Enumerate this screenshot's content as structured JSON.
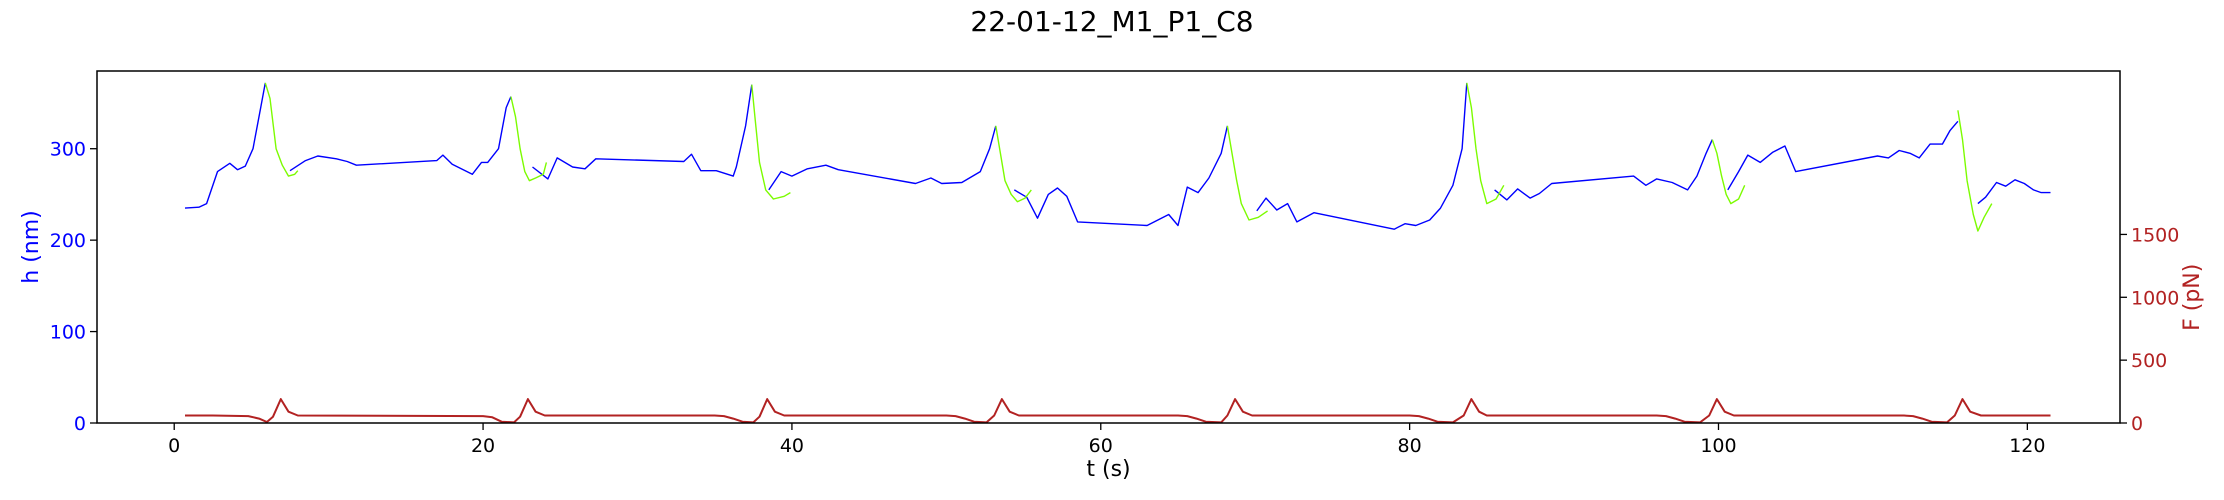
{
  "chart_data": {
    "type": "line",
    "title": "22-01-12_M1_P1_C8",
    "xlabel": "t (s)",
    "ylabel": "h (nm)",
    "y2label": "F (pN)",
    "xlim": [
      -5,
      126
    ],
    "ylim": [
      0,
      385
    ],
    "y2lim": [
      0,
      2800
    ],
    "x_ticks": [
      0,
      20,
      40,
      60,
      80,
      100,
      120
    ],
    "y_ticks": [
      0,
      100,
      200,
      300
    ],
    "y2_ticks": [
      0,
      500,
      1000,
      1500
    ],
    "grid": false,
    "colors": {
      "h_approach": "#0000ff",
      "h_retract": "#7cfc00",
      "force": "#b22222",
      "left_axis": "#0000ff",
      "right_axis": "#b22222"
    },
    "series": [
      {
        "axis": "left",
        "color_key": "h_approach",
        "segments": [
          [
            [
              0.7,
              235
            ],
            [
              1.6,
              236
            ],
            [
              2.1,
              240
            ],
            [
              2.8,
              275
            ],
            [
              3.6,
              284
            ],
            [
              4.1,
              277
            ],
            [
              4.6,
              281
            ],
            [
              5.1,
              300
            ],
            [
              5.6,
              345
            ],
            [
              5.9,
              372
            ]
          ],
          [
            [
              7.5,
              276
            ],
            [
              8.5,
              287
            ],
            [
              9.3,
              292
            ],
            [
              10.5,
              289
            ],
            [
              11.2,
              286
            ],
            [
              11.8,
              282
            ],
            [
              17.0,
              287
            ],
            [
              17.4,
              293
            ],
            [
              18.0,
              283
            ],
            [
              19.3,
              272
            ],
            [
              19.9,
              285
            ],
            [
              20.3,
              285
            ],
            [
              21.0,
              300
            ],
            [
              21.5,
              345
            ],
            [
              21.8,
              357
            ]
          ],
          [
            [
              23.2,
              280
            ],
            [
              24.2,
              267
            ],
            [
              24.8,
              290
            ],
            [
              25.8,
              280
            ],
            [
              26.6,
              278
            ],
            [
              27.3,
              289
            ],
            [
              33.0,
              286
            ],
            [
              33.5,
              294
            ],
            [
              34.1,
              276
            ],
            [
              35.1,
              276
            ],
            [
              36.2,
              270
            ],
            [
              36.4,
              280
            ],
            [
              37.0,
              325
            ],
            [
              37.4,
              370
            ]
          ],
          [
            [
              38.5,
              255
            ],
            [
              39.3,
              275
            ],
            [
              40.0,
              270
            ],
            [
              41.0,
              278
            ],
            [
              42.2,
              282
            ],
            [
              43.0,
              277
            ],
            [
              48.0,
              262
            ],
            [
              49.0,
              268
            ],
            [
              49.7,
              262
            ],
            [
              51.0,
              263
            ],
            [
              52.2,
              275
            ],
            [
              52.8,
              300
            ],
            [
              53.2,
              325
            ]
          ],
          [
            [
              54.4,
              255
            ],
            [
              55.2,
              247
            ],
            [
              55.9,
              224
            ],
            [
              56.6,
              250
            ],
            [
              57.2,
              257
            ],
            [
              57.8,
              248
            ],
            [
              58.5,
              220
            ],
            [
              63.0,
              216
            ],
            [
              63.7,
              222
            ],
            [
              64.4,
              228
            ],
            [
              65.0,
              216
            ],
            [
              65.6,
              258
            ],
            [
              66.3,
              252
            ],
            [
              67.0,
              268
            ],
            [
              67.8,
              295
            ],
            [
              68.2,
              325
            ]
          ],
          [
            [
              70.1,
              232
            ],
            [
              70.7,
              246
            ],
            [
              71.4,
              233
            ],
            [
              72.1,
              240
            ],
            [
              72.7,
              220
            ],
            [
              73.8,
              230
            ],
            [
              79.0,
              212
            ],
            [
              79.7,
              218
            ],
            [
              80.4,
              216
            ],
            [
              81.3,
              222
            ],
            [
              82.0,
              235
            ],
            [
              82.8,
              260
            ],
            [
              83.4,
              300
            ],
            [
              83.7,
              372
            ]
          ],
          [
            [
              85.5,
              255
            ],
            [
              86.3,
              244
            ],
            [
              87.0,
              256
            ],
            [
              87.8,
              246
            ],
            [
              88.4,
              251
            ],
            [
              89.2,
              262
            ],
            [
              94.5,
              270
            ],
            [
              95.3,
              260
            ],
            [
              96.0,
              267
            ],
            [
              97.0,
              263
            ],
            [
              98.0,
              255
            ],
            [
              98.6,
              270
            ],
            [
              99.2,
              295
            ],
            [
              99.6,
              310
            ]
          ],
          [
            [
              100.6,
              255
            ],
            [
              101.3,
              275
            ],
            [
              101.9,
              293
            ],
            [
              102.7,
              285
            ],
            [
              103.5,
              296
            ],
            [
              104.3,
              303
            ],
            [
              105.0,
              275
            ],
            [
              110.3,
              292
            ],
            [
              111.0,
              290
            ],
            [
              111.7,
              298
            ],
            [
              112.4,
              295
            ],
            [
              113.0,
              290
            ],
            [
              113.7,
              305
            ],
            [
              114.5,
              305
            ],
            [
              115.0,
              320
            ],
            [
              115.5,
              330
            ]
          ],
          [
            [
              116.8,
              240
            ],
            [
              117.3,
              247
            ],
            [
              118.0,
              263
            ],
            [
              118.6,
              259
            ],
            [
              119.2,
              266
            ],
            [
              119.8,
              262
            ],
            [
              120.4,
              255
            ],
            [
              120.9,
              252
            ],
            [
              121.5,
              252
            ]
          ]
        ]
      },
      {
        "axis": "left",
        "color_key": "h_retract",
        "segments": [
          [
            [
              5.9,
              372
            ],
            [
              6.2,
              355
            ],
            [
              6.6,
              300
            ],
            [
              7.0,
              282
            ],
            [
              7.4,
              270
            ],
            [
              7.8,
              272
            ],
            [
              8.0,
              276
            ]
          ],
          [
            [
              21.8,
              357
            ],
            [
              22.1,
              335
            ],
            [
              22.4,
              300
            ],
            [
              22.7,
              275
            ],
            [
              23.0,
              265
            ],
            [
              23.4,
              268
            ],
            [
              23.9,
              272
            ],
            [
              24.1,
              285
            ]
          ],
          [
            [
              37.4,
              370
            ],
            [
              37.6,
              335
            ],
            [
              37.9,
              285
            ],
            [
              38.3,
              255
            ],
            [
              38.8,
              245
            ],
            [
              39.5,
              248
            ],
            [
              39.9,
              252
            ]
          ],
          [
            [
              53.2,
              325
            ],
            [
              53.5,
              295
            ],
            [
              53.8,
              265
            ],
            [
              54.2,
              250
            ],
            [
              54.6,
              242
            ],
            [
              55.1,
              246
            ],
            [
              55.5,
              255
            ]
          ],
          [
            [
              68.2,
              325
            ],
            [
              68.5,
              295
            ],
            [
              68.8,
              265
            ],
            [
              69.1,
              240
            ],
            [
              69.6,
              222
            ],
            [
              70.2,
              225
            ],
            [
              70.8,
              232
            ]
          ],
          [
            [
              83.7,
              372
            ],
            [
              84.0,
              345
            ],
            [
              84.3,
              300
            ],
            [
              84.6,
              265
            ],
            [
              85.0,
              240
            ],
            [
              85.6,
              245
            ],
            [
              86.1,
              260
            ]
          ],
          [
            [
              99.6,
              310
            ],
            [
              99.9,
              295
            ],
            [
              100.2,
              270
            ],
            [
              100.5,
              250
            ],
            [
              100.8,
              240
            ],
            [
              101.3,
              245
            ],
            [
              101.7,
              260
            ]
          ],
          [
            [
              115.5,
              342
            ],
            [
              115.8,
              310
            ],
            [
              116.1,
              265
            ],
            [
              116.5,
              228
            ],
            [
              116.8,
              210
            ],
            [
              117.2,
              225
            ],
            [
              117.7,
              240
            ]
          ]
        ]
      },
      {
        "axis": "right",
        "color_key": "force",
        "segments": [
          [
            [
              0.7,
              60
            ],
            [
              2.5,
              60
            ],
            [
              4.8,
              55
            ],
            [
              5.5,
              35
            ],
            [
              6.0,
              8
            ],
            [
              6.4,
              50
            ],
            [
              6.9,
              190
            ],
            [
              7.4,
              90
            ],
            [
              8.0,
              60
            ],
            [
              20.0,
              55
            ],
            [
              20.6,
              45
            ],
            [
              21.2,
              10
            ],
            [
              22.0,
              5
            ],
            [
              22.4,
              50
            ],
            [
              22.9,
              190
            ],
            [
              23.4,
              90
            ],
            [
              24.0,
              60
            ],
            [
              35.0,
              60
            ],
            [
              35.6,
              55
            ],
            [
              36.2,
              35
            ],
            [
              36.8,
              10
            ],
            [
              37.5,
              5
            ],
            [
              37.9,
              50
            ],
            [
              38.4,
              190
            ],
            [
              38.9,
              90
            ],
            [
              39.5,
              60
            ],
            [
              50.0,
              60
            ],
            [
              50.6,
              55
            ],
            [
              51.2,
              35
            ],
            [
              51.8,
              10
            ],
            [
              52.6,
              5
            ],
            [
              53.1,
              60
            ],
            [
              53.6,
              190
            ],
            [
              54.1,
              90
            ],
            [
              54.7,
              60
            ],
            [
              65.0,
              60
            ],
            [
              65.6,
              55
            ],
            [
              66.2,
              35
            ],
            [
              66.8,
              10
            ],
            [
              67.8,
              5
            ],
            [
              68.2,
              60
            ],
            [
              68.7,
              190
            ],
            [
              69.2,
              90
            ],
            [
              69.8,
              60
            ],
            [
              80.0,
              60
            ],
            [
              80.6,
              55
            ],
            [
              81.2,
              35
            ],
            [
              81.8,
              10
            ],
            [
              82.8,
              5
            ],
            [
              83.5,
              60
            ],
            [
              84.0,
              190
            ],
            [
              84.5,
              90
            ],
            [
              85.0,
              60
            ],
            [
              96.0,
              60
            ],
            [
              96.6,
              55
            ],
            [
              97.2,
              35
            ],
            [
              97.8,
              10
            ],
            [
              98.8,
              5
            ],
            [
              99.4,
              60
            ],
            [
              99.9,
              190
            ],
            [
              100.4,
              90
            ],
            [
              101.0,
              60
            ],
            [
              112.0,
              60
            ],
            [
              112.6,
              55
            ],
            [
              113.2,
              35
            ],
            [
              113.8,
              10
            ],
            [
              114.8,
              5
            ],
            [
              115.3,
              60
            ],
            [
              115.8,
              190
            ],
            [
              116.3,
              90
            ],
            [
              117.0,
              60
            ],
            [
              121.5,
              60
            ]
          ]
        ]
      }
    ]
  }
}
